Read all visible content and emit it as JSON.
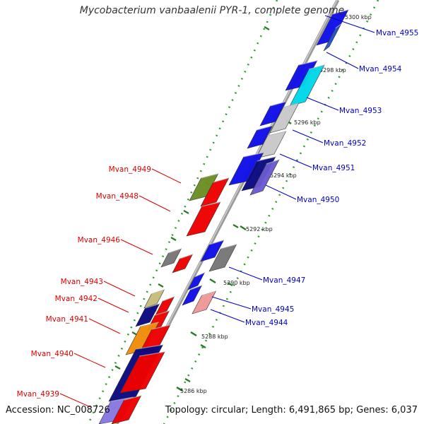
{
  "title": "Mycobacterium vanbaalenii PYR-1, complete genome",
  "footer": {
    "accession": "Accession: NC_008726",
    "topology": "Topology: circular; Length: 6,491,865 bp; Genes: 6,037"
  },
  "colors": {
    "backbone": "#8c8c8c",
    "forward_label": "#0000cc",
    "reverse_label": "#dd0000",
    "tick": "#2a7a2a",
    "dots": "#2e9e2e"
  },
  "ticks": [
    {
      "label": "5300 kbp"
    },
    {
      "label": "5298 kbp"
    },
    {
      "label": "5296 kbp"
    },
    {
      "label": "5294 kbp"
    },
    {
      "label": "5292 kbp"
    },
    {
      "label": "5290 kbp"
    },
    {
      "label": "5288 kbp"
    },
    {
      "label": "5286 kbp"
    }
  ],
  "gene_labels": [
    {
      "text": "Mvan_4955",
      "strand": "forward"
    },
    {
      "text": "Mvan_4954",
      "strand": "forward"
    },
    {
      "text": "Mvan_4953",
      "strand": "forward"
    },
    {
      "text": "Mvan_4952",
      "strand": "forward"
    },
    {
      "text": "Mvan_4951",
      "strand": "forward"
    },
    {
      "text": "Mvan_4950",
      "strand": "forward"
    },
    {
      "text": "Mvan_4947",
      "strand": "forward"
    },
    {
      "text": "Mvan_4945",
      "strand": "forward"
    },
    {
      "text": "Mvan_4944",
      "strand": "forward"
    },
    {
      "text": "Mvan_4949",
      "strand": "reverse"
    },
    {
      "text": "Mvan_4948",
      "strand": "reverse"
    },
    {
      "text": "Mvan_4946",
      "strand": "reverse"
    },
    {
      "text": "Mvan_4943",
      "strand": "reverse"
    },
    {
      "text": "Mvan_4942",
      "strand": "reverse"
    },
    {
      "text": "Mvan_4941",
      "strand": "reverse"
    },
    {
      "text": "Mvan_4940",
      "strand": "reverse"
    },
    {
      "text": "Mvan_4939",
      "strand": "reverse"
    }
  ],
  "genes": [
    {
      "strand": "forward",
      "color": "#1010e8"
    },
    {
      "strand": "forward",
      "color": "#2a56c8"
    },
    {
      "strand": "forward",
      "color": "#1010e8"
    },
    {
      "strand": "forward",
      "color": "#00d8e8"
    },
    {
      "strand": "forward",
      "color": "#1010e8"
    },
    {
      "strand": "forward",
      "color": "#c8c8c8"
    },
    {
      "strand": "forward",
      "color": "#1010e8"
    },
    {
      "strand": "forward",
      "color": "#c8c8c8"
    },
    {
      "strand": "forward",
      "color": "#1010e8"
    },
    {
      "strand": "forward",
      "color": "#0a0a80"
    },
    {
      "strand": "forward",
      "color": "#6a5ad0"
    },
    {
      "strand": "forward",
      "color": "#1010e8"
    },
    {
      "strand": "forward",
      "color": "#777777"
    },
    {
      "strand": "forward",
      "color": "#1010e8"
    },
    {
      "strand": "forward",
      "color": "#1010e8"
    },
    {
      "strand": "forward",
      "color": "#f09898"
    },
    {
      "strand": "reverse",
      "color": "#6b8e23"
    },
    {
      "strand": "reverse",
      "color": "#ee0000"
    },
    {
      "strand": "reverse",
      "color": "#ee0000"
    },
    {
      "strand": "reverse",
      "color": "#777777"
    },
    {
      "strand": "reverse",
      "color": "#ee0000"
    },
    {
      "strand": "reverse",
      "color": "#c8bc78"
    },
    {
      "strand": "reverse",
      "color": "#ee0000"
    },
    {
      "strand": "reverse",
      "color": "#0a0a80"
    },
    {
      "strand": "reverse",
      "color": "#ee0000"
    },
    {
      "strand": "reverse",
      "color": "#f08c0a"
    },
    {
      "strand": "reverse",
      "color": "#ee0000"
    },
    {
      "strand": "reverse",
      "color": "#0a0a80"
    },
    {
      "strand": "reverse",
      "color": "#ee0000"
    },
    {
      "strand": "reverse",
      "color": "#8878e0"
    },
    {
      "strand": "reverse",
      "color": "#ee0000"
    }
  ]
}
